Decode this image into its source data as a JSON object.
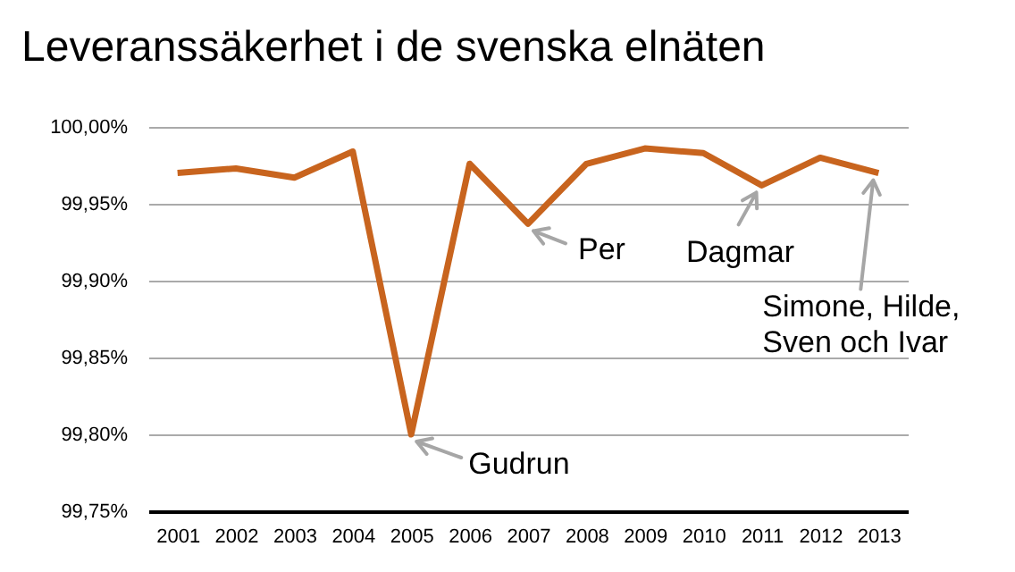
{
  "chart_data": {
    "type": "line",
    "title": "Leveranssäkerhet i de svenska elnäten",
    "categories": [
      "2001",
      "2002",
      "2003",
      "2004",
      "2005",
      "2006",
      "2007",
      "2008",
      "2009",
      "2010",
      "2011",
      "2012",
      "2013"
    ],
    "series": [
      {
        "color": "#c8641e",
        "values": [
          99.97,
          99.973,
          99.967,
          99.984,
          99.8,
          99.976,
          99.937,
          99.976,
          99.986,
          99.983,
          99.962,
          99.98,
          99.97
        ]
      }
    ],
    "ylim": [
      99.75,
      100.0
    ],
    "yticks": [
      {
        "value": 99.75,
        "label": "99,75%"
      },
      {
        "value": 99.8,
        "label": "99,80%"
      },
      {
        "value": 99.85,
        "label": "99,85%"
      },
      {
        "value": 99.9,
        "label": "99,90%"
      },
      {
        "value": 99.95,
        "label": "99,95%"
      },
      {
        "value": 100.0,
        "label": "100,00%"
      }
    ],
    "grid": "y",
    "marker": "none",
    "line_style": "solid",
    "annotations": [
      {
        "text": "Gudrun",
        "x": "2005",
        "y": 99.8
      },
      {
        "text": "Per",
        "x": "2007",
        "y": 99.937
      },
      {
        "text": "Dagmar",
        "x": "2011",
        "y": 99.962
      },
      {
        "text": "Simone, Hilde,\nSven och Ivar",
        "x": "2013",
        "y": 99.97
      }
    ]
  }
}
